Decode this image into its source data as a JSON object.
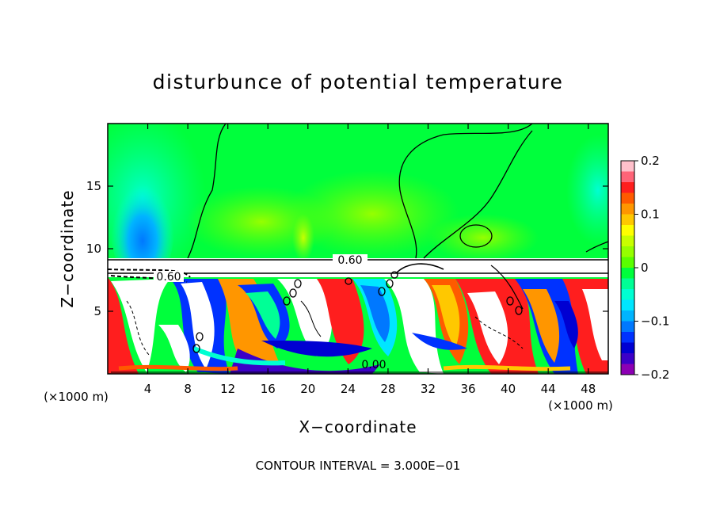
{
  "chart_data": {
    "type": "heatmap",
    "title": "disturbunce of potential temperature",
    "xlabel": "X−coordinate",
    "ylabel": "Z−coordinate",
    "x_unit_left": "(×1000 m)",
    "x_unit_right": "(×1000 m)",
    "footer": "CONTOUR INTERVAL = 3.000E−01",
    "xlim": [
      0,
      50
    ],
    "ylim": [
      0,
      20
    ],
    "x_ticks": [
      4,
      8,
      12,
      16,
      20,
      24,
      28,
      32,
      36,
      40,
      44,
      48
    ],
    "x_tick_labels": [
      "4",
      "8",
      "12",
      "16",
      "20",
      "24",
      "28",
      "32",
      "36",
      "40",
      "44",
      "48"
    ],
    "y_ticks": [
      5,
      10,
      15
    ],
    "y_tick_labels": [
      "5",
      "10",
      "15"
    ],
    "colorbar": {
      "min": -0.2,
      "max": 0.2,
      "ticks": [
        0.2,
        0.1,
        0,
        -0.1,
        -0.2
      ],
      "tick_labels": [
        "0.2",
        "0.1",
        "0",
        "−0.1",
        "−0.2"
      ],
      "colors": [
        "#ffc0cb",
        "#ff6478",
        "#ff1e1e",
        "#ff5a00",
        "#ff9600",
        "#ffc800",
        "#ffff00",
        "#c8ff00",
        "#96ff00",
        "#5aff00",
        "#00ff3c",
        "#00ff96",
        "#00ffd2",
        "#00e6ff",
        "#00b4ff",
        "#0078ff",
        "#0032ff",
        "#0000d2",
        "#3c00c8",
        "#8c00b4"
      ]
    },
    "contour_labels": [
      {
        "text": "0.60",
        "x": 24.4,
        "z": 9.1
      },
      {
        "text": "0.60",
        "x": 5.8,
        "z": 7.8
      },
      {
        "text": "0.00",
        "x": 26.5,
        "z": 0.7
      }
    ],
    "layers": {
      "upper_background": "#00ff3c",
      "inversion_band": {
        "z_bottom": 7.7,
        "z_top": 9.0,
        "color": "#ffffff"
      },
      "turbulent_layer": {
        "z_bottom": 0,
        "z_top": 7.7
      }
    }
  }
}
